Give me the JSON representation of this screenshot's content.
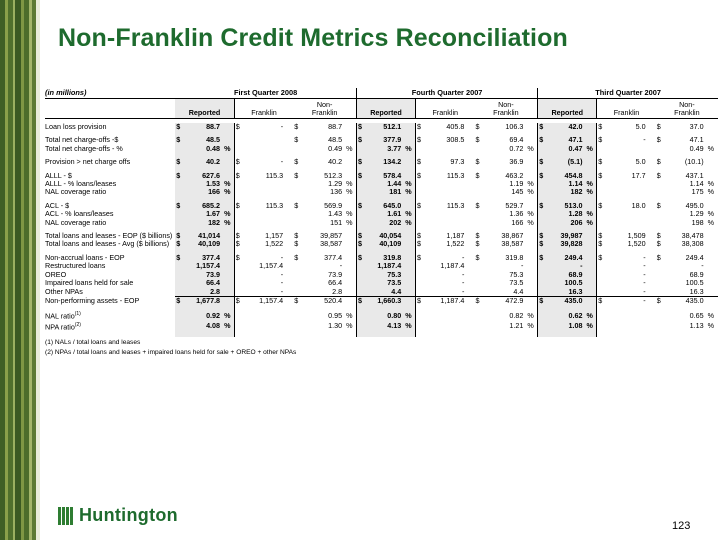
{
  "title": "Non-Franklin Credit Metrics Reconciliation",
  "units_note": "(in millions)",
  "periods": [
    "First Quarter 2008",
    "Fourth Quarter 2007",
    "Third Quarter 2007"
  ],
  "column_headers": {
    "reported": "Reported",
    "franklin": "Franklin",
    "non_franklin_line1": "Non-",
    "non_franklin_line2": "Franklin"
  },
  "rows": [
    {
      "label": "Loan loss provision",
      "cells": [
        [
          "$",
          "88.7",
          ""
        ],
        [
          "$",
          "-",
          ""
        ],
        [
          "$",
          "88.7",
          ""
        ],
        [
          "$",
          "512.1",
          ""
        ],
        [
          "$",
          "405.8",
          ""
        ],
        [
          "$",
          "106.3",
          ""
        ],
        [
          "$",
          "42.0",
          ""
        ],
        [
          "$",
          "5.0",
          ""
        ],
        [
          "$",
          "37.0",
          ""
        ]
      ]
    },
    {
      "gap": true
    },
    {
      "label": "Total net charge-offs -$",
      "cells": [
        [
          "$",
          "48.5",
          ""
        ],
        [
          "",
          "",
          ""
        ],
        [
          "$",
          "48.5",
          ""
        ],
        [
          "$",
          "377.9",
          ""
        ],
        [
          "$",
          "308.5",
          ""
        ],
        [
          "$",
          "69.4",
          ""
        ],
        [
          "$",
          "47.1",
          ""
        ],
        [
          "$",
          "-",
          ""
        ],
        [
          "$",
          "47.1",
          ""
        ]
      ]
    },
    {
      "label": "Total net charge-offs - %",
      "cells": [
        [
          "",
          "0.48",
          "%"
        ],
        [
          "",
          "",
          ""
        ],
        [
          "",
          "0.49",
          "%"
        ],
        [
          "",
          "3.77",
          "%"
        ],
        [
          "",
          "",
          ""
        ],
        [
          "",
          "0.72",
          "%"
        ],
        [
          "",
          "0.47",
          "%"
        ],
        [
          "",
          "",
          ""
        ],
        [
          "",
          "0.49",
          "%"
        ]
      ]
    },
    {
      "gap": true
    },
    {
      "label": "Provision > net charge offs",
      "cells": [
        [
          "$",
          "40.2",
          ""
        ],
        [
          "$",
          "-",
          ""
        ],
        [
          "$",
          "40.2",
          ""
        ],
        [
          "$",
          "134.2",
          ""
        ],
        [
          "$",
          "97.3",
          ""
        ],
        [
          "$",
          "36.9",
          ""
        ],
        [
          "$",
          "(5.1)",
          ""
        ],
        [
          "$",
          "5.0",
          ""
        ],
        [
          "$",
          "(10.1)",
          ""
        ]
      ]
    },
    {
      "gap": true
    },
    {
      "label": "ALLL - $",
      "cells": [
        [
          "$",
          "627.6",
          ""
        ],
        [
          "$",
          "115.3",
          ""
        ],
        [
          "$",
          "512.3",
          ""
        ],
        [
          "$",
          "578.4",
          ""
        ],
        [
          "$",
          "115.3",
          ""
        ],
        [
          "$",
          "463.2",
          ""
        ],
        [
          "$",
          "454.8",
          ""
        ],
        [
          "$",
          "17.7",
          ""
        ],
        [
          "$",
          "437.1",
          ""
        ]
      ]
    },
    {
      "label": "ALLL - % loans/leases",
      "cells": [
        [
          "",
          "1.53",
          "%"
        ],
        [
          "",
          "",
          ""
        ],
        [
          "",
          "1.29",
          "%"
        ],
        [
          "",
          "1.44",
          "%"
        ],
        [
          "",
          "",
          ""
        ],
        [
          "",
          "1.19",
          "%"
        ],
        [
          "",
          "1.14",
          "%"
        ],
        [
          "",
          "",
          ""
        ],
        [
          "",
          "1.14",
          "%"
        ]
      ]
    },
    {
      "label": "NAL coverage ratio",
      "cells": [
        [
          "",
          "166",
          "%"
        ],
        [
          "",
          "",
          ""
        ],
        [
          "",
          "136",
          "%"
        ],
        [
          "",
          "181",
          "%"
        ],
        [
          "",
          "",
          ""
        ],
        [
          "",
          "145",
          "%"
        ],
        [
          "",
          "182",
          "%"
        ],
        [
          "",
          "",
          ""
        ],
        [
          "",
          "175",
          "%"
        ]
      ]
    },
    {
      "gap": true
    },
    {
      "label": "ACL - $",
      "cells": [
        [
          "$",
          "685.2",
          ""
        ],
        [
          "$",
          "115.3",
          ""
        ],
        [
          "$",
          "569.9",
          ""
        ],
        [
          "$",
          "645.0",
          ""
        ],
        [
          "$",
          "115.3",
          ""
        ],
        [
          "$",
          "529.7",
          ""
        ],
        [
          "$",
          "513.0",
          ""
        ],
        [
          "$",
          "18.0",
          ""
        ],
        [
          "$",
          "495.0",
          ""
        ]
      ]
    },
    {
      "label": "ACL - % loans/leases",
      "cells": [
        [
          "",
          "1.67",
          "%"
        ],
        [
          "",
          "",
          ""
        ],
        [
          "",
          "1.43",
          "%"
        ],
        [
          "",
          "1.61",
          "%"
        ],
        [
          "",
          "",
          ""
        ],
        [
          "",
          "1.36",
          "%"
        ],
        [
          "",
          "1.28",
          "%"
        ],
        [
          "",
          "",
          ""
        ],
        [
          "",
          "1.29",
          "%"
        ]
      ]
    },
    {
      "label": "NAL coverage ratio",
      "cells": [
        [
          "",
          "182",
          "%"
        ],
        [
          "",
          "",
          ""
        ],
        [
          "",
          "151",
          "%"
        ],
        [
          "",
          "202",
          "%"
        ],
        [
          "",
          "",
          ""
        ],
        [
          "",
          "166",
          "%"
        ],
        [
          "",
          "206",
          "%"
        ],
        [
          "",
          "",
          ""
        ],
        [
          "",
          "198",
          "%"
        ]
      ]
    },
    {
      "gap": true
    },
    {
      "label": "Total loans and leases - EOP ($ billions)",
      "cells": [
        [
          "$",
          "41,014",
          ""
        ],
        [
          "$",
          "1,157",
          ""
        ],
        [
          "$",
          "39,857",
          ""
        ],
        [
          "$",
          "40,054",
          ""
        ],
        [
          "$",
          "1,187",
          ""
        ],
        [
          "$",
          "38,867",
          ""
        ],
        [
          "$",
          "39,987",
          ""
        ],
        [
          "$",
          "1,509",
          ""
        ],
        [
          "$",
          "38,478",
          ""
        ]
      ]
    },
    {
      "label": "Total loans and leases - Avg ($ billions)",
      "cells": [
        [
          "$",
          "40,109",
          ""
        ],
        [
          "$",
          "1,522",
          ""
        ],
        [
          "$",
          "38,587",
          ""
        ],
        [
          "$",
          "40,109",
          ""
        ],
        [
          "$",
          "1,522",
          ""
        ],
        [
          "$",
          "38,587",
          ""
        ],
        [
          "$",
          "39,828",
          ""
        ],
        [
          "$",
          "1,520",
          ""
        ],
        [
          "$",
          "38,308",
          ""
        ]
      ]
    },
    {
      "gap": true
    },
    {
      "label": "Non-accrual loans - EOP",
      "cells": [
        [
          "$",
          "377.4",
          ""
        ],
        [
          "$",
          "-",
          ""
        ],
        [
          "$",
          "377.4",
          ""
        ],
        [
          "$",
          "319.8",
          ""
        ],
        [
          "$",
          "-",
          ""
        ],
        [
          "$",
          "319.8",
          ""
        ],
        [
          "$",
          "249.4",
          ""
        ],
        [
          "$",
          "-",
          ""
        ],
        [
          "$",
          "249.4",
          ""
        ]
      ]
    },
    {
      "label": "Restructured loans",
      "cells": [
        [
          "",
          "1,157.4",
          ""
        ],
        [
          "",
          "1,157.4",
          ""
        ],
        [
          "",
          "-",
          ""
        ],
        [
          "",
          "1,187.4",
          ""
        ],
        [
          "",
          "1,187.4",
          ""
        ],
        [
          "",
          "-",
          ""
        ],
        [
          "",
          "-",
          ""
        ],
        [
          "",
          "-",
          ""
        ],
        [
          "",
          "-",
          ""
        ]
      ]
    },
    {
      "label": "OREO",
      "cells": [
        [
          "",
          "73.9",
          ""
        ],
        [
          "",
          "-",
          ""
        ],
        [
          "",
          "73.9",
          ""
        ],
        [
          "",
          "75.3",
          ""
        ],
        [
          "",
          "-",
          ""
        ],
        [
          "",
          "75.3",
          ""
        ],
        [
          "",
          "68.9",
          ""
        ],
        [
          "",
          "-",
          ""
        ],
        [
          "",
          "68.9",
          ""
        ]
      ]
    },
    {
      "label": "Impaired loans held for sale",
      "cells": [
        [
          "",
          "66.4",
          ""
        ],
        [
          "",
          "-",
          ""
        ],
        [
          "",
          "66.4",
          ""
        ],
        [
          "",
          "73.5",
          ""
        ],
        [
          "",
          "-",
          ""
        ],
        [
          "",
          "73.5",
          ""
        ],
        [
          "",
          "100.5",
          ""
        ],
        [
          "",
          "-",
          ""
        ],
        [
          "",
          "100.5",
          ""
        ]
      ]
    },
    {
      "label": "Other NPAs",
      "cells": [
        [
          "",
          "2.8",
          ""
        ],
        [
          "",
          "-",
          ""
        ],
        [
          "",
          "2.8",
          ""
        ],
        [
          "",
          "4.4",
          ""
        ],
        [
          "",
          "-",
          ""
        ],
        [
          "",
          "4.4",
          ""
        ],
        [
          "",
          "16.3",
          ""
        ],
        [
          "",
          "-",
          ""
        ],
        [
          "",
          "16.3",
          ""
        ]
      ]
    },
    {
      "label": "Non-performing assets - EOP",
      "total": true,
      "cells": [
        [
          "$",
          "1,677.8",
          ""
        ],
        [
          "$",
          "1,157.4",
          ""
        ],
        [
          "$",
          "520.4",
          ""
        ],
        [
          "$",
          "1,660.3",
          ""
        ],
        [
          "$",
          "1,187.4",
          ""
        ],
        [
          "$",
          "472.9",
          ""
        ],
        [
          "$",
          "435.0",
          ""
        ],
        [
          "$",
          "-",
          ""
        ],
        [
          "$",
          "435.0",
          ""
        ]
      ]
    },
    {
      "gap": true
    },
    {
      "label": "NAL ratio",
      "sup": "(1)",
      "cells": [
        [
          "",
          "0.92",
          "%"
        ],
        [
          "",
          "",
          ""
        ],
        [
          "",
          "0.95",
          "%"
        ],
        [
          "",
          "0.80",
          "%"
        ],
        [
          "",
          "",
          ""
        ],
        [
          "",
          "0.82",
          "%"
        ],
        [
          "",
          "0.62",
          "%"
        ],
        [
          "",
          "",
          ""
        ],
        [
          "",
          "0.65",
          "%"
        ]
      ]
    },
    {
      "label": "NPA ratio",
      "sup": "(2)",
      "cells": [
        [
          "",
          "4.08",
          "%"
        ],
        [
          "",
          "",
          ""
        ],
        [
          "",
          "1.30",
          "%"
        ],
        [
          "",
          "4.13",
          "%"
        ],
        [
          "",
          "",
          ""
        ],
        [
          "",
          "1.21",
          "%"
        ],
        [
          "",
          "1.08",
          "%"
        ],
        [
          "",
          "",
          ""
        ],
        [
          "",
          "1.13",
          "%"
        ]
      ]
    }
  ],
  "footnotes": [
    "(1) NALs / total loans and leases",
    "(2) NPAs / total loans and leases + impaired loans held for sale + OREO + other NPAs"
  ],
  "logo_text": "Huntington",
  "page_number": "123",
  "colors": {
    "title": "#1e6b2e",
    "shade": "#e9e9e9",
    "stripe_dark": "#4a6b2a",
    "stripe_light": "#8da04a"
  },
  "icons": {
    "logo": "huntington-logo-icon"
  }
}
